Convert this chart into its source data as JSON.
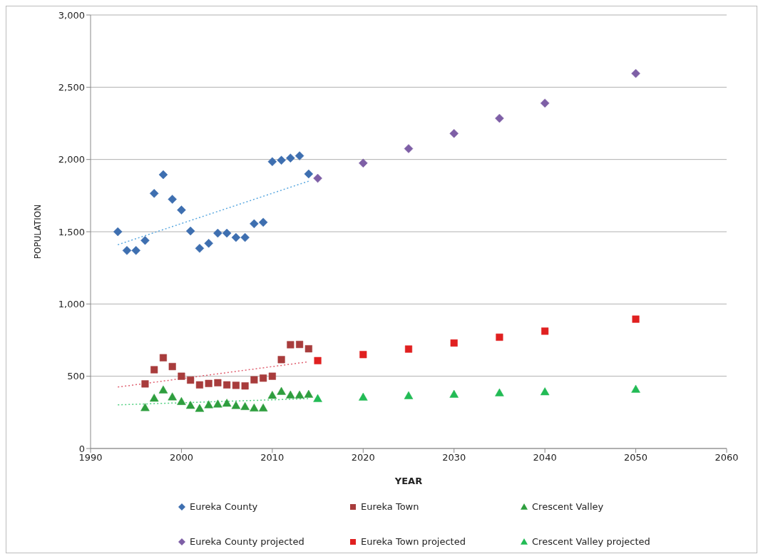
{
  "chart_data": {
    "type": "scatter",
    "xlabel": "YEAR",
    "ylabel": "POPULATION",
    "xlim": [
      1990,
      2060
    ],
    "xticks": [
      1990,
      2000,
      2010,
      2020,
      2030,
      2040,
      2050,
      2060
    ],
    "ylim": [
      0,
      3000
    ],
    "yticks": [
      0,
      {
        "value": 500,
        "label": "500"
      },
      {
        "value": 1000,
        "label": "1,000"
      },
      {
        "value": 1500,
        "label": "1,500"
      },
      {
        "value": 2000,
        "label": "2,000"
      },
      {
        "value": 2500,
        "label": "2,500"
      },
      {
        "value": 3000,
        "label": "3,000"
      }
    ],
    "grid": "y",
    "legend": "bottom",
    "series": [
      {
        "name": "Eureka County",
        "color": "#3e6fb0",
        "marker": "diamond",
        "x": [
          1993,
          1994,
          1995,
          1996,
          1997,
          1998,
          1999,
          2000,
          2001,
          2002,
          2003,
          2004,
          2005,
          2006,
          2007,
          2008,
          2009,
          2010,
          2011,
          2012,
          2013,
          2014
        ],
        "values": [
          1500,
          1370,
          1370,
          1440,
          1765,
          1895,
          1725,
          1650,
          1505,
          1385,
          1420,
          1490,
          1490,
          1460,
          1460,
          1555,
          1565,
          1985,
          1995,
          2010,
          2025,
          1900
        ]
      },
      {
        "name": "Eureka Town",
        "color": "#a83c3c",
        "marker": "square",
        "x": [
          1996,
          1997,
          1998,
          1999,
          2000,
          2001,
          2002,
          2003,
          2004,
          2005,
          2006,
          2007,
          2008,
          2009,
          2010,
          2011,
          2012,
          2013,
          2014
        ],
        "values": [
          447,
          545,
          628,
          567,
          500,
          473,
          440,
          450,
          455,
          440,
          437,
          433,
          475,
          487,
          500,
          615,
          718,
          720,
          690
        ]
      },
      {
        "name": "Crescent Valley",
        "color": "#2e9e3e",
        "marker": "triangle",
        "x": [
          1996,
          1997,
          1998,
          1999,
          2000,
          2001,
          2002,
          2003,
          2004,
          2005,
          2006,
          2007,
          2008,
          2009,
          2010,
          2011,
          2012,
          2013,
          2014
        ],
        "values": [
          283,
          348,
          405,
          357,
          325,
          298,
          277,
          302,
          307,
          313,
          297,
          290,
          280,
          280,
          368,
          395,
          370,
          370,
          375
        ]
      },
      {
        "name": "Eureka County projected",
        "color": "#7e5fa6",
        "marker": "diamond",
        "x": [
          2015,
          2020,
          2025,
          2030,
          2035,
          2040,
          2050
        ],
        "values": [
          1870,
          1975,
          2075,
          2180,
          2285,
          2390,
          2595
        ]
      },
      {
        "name": "Eureka Town projected",
        "color": "#e02020",
        "marker": "square",
        "x": [
          2015,
          2020,
          2025,
          2030,
          2035,
          2040,
          2050
        ],
        "values": [
          608,
          650,
          688,
          730,
          770,
          812,
          895
        ]
      },
      {
        "name": "Crescent Valley projected",
        "color": "#22bb55",
        "marker": "triangle",
        "x": [
          2015,
          2020,
          2025,
          2030,
          2035,
          2040,
          2050
        ],
        "values": [
          345,
          355,
          365,
          375,
          385,
          392,
          410
        ]
      },
      {
        "type": "line",
        "color": "#5aa8e0",
        "line_style": "dotted",
        "marker": "none",
        "x": [
          1993,
          2014
        ],
        "values": [
          1410,
          1850
        ]
      },
      {
        "type": "line",
        "color": "#e06070",
        "line_style": "dotted",
        "marker": "none",
        "x": [
          1993,
          2014
        ],
        "values": [
          425,
          600
        ]
      },
      {
        "type": "line",
        "color": "#50d080",
        "line_style": "dotted",
        "marker": "none",
        "x": [
          1993,
          2014
        ],
        "values": [
          302,
          345
        ]
      }
    ]
  }
}
